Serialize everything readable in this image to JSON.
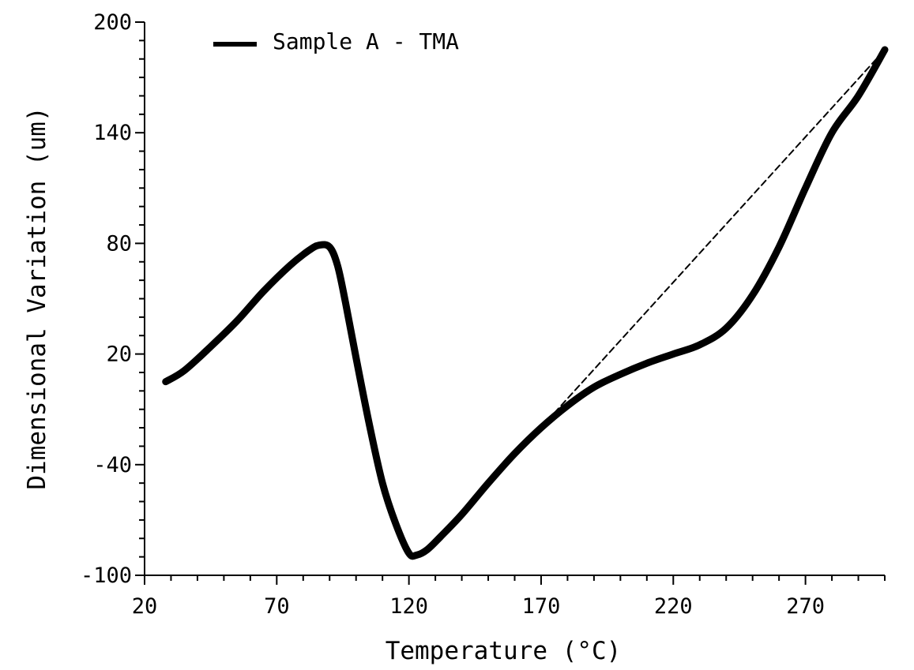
{
  "chart_data": {
    "type": "line",
    "xlabel": "Temperature (°C)",
    "ylabel": "Dimensional Variation (um)",
    "xlim": [
      20,
      300
    ],
    "ylim": [
      -100,
      200
    ],
    "xticks": [
      "20",
      "70",
      "120",
      "170",
      "220",
      "270"
    ],
    "yticks": [
      "200",
      "140",
      "80",
      "20",
      "-40",
      "-100"
    ],
    "legend_position": "top-left",
    "grid": false,
    "series": [
      {
        "name": "Sample A - TMA",
        "style": "solid",
        "color": "#000000",
        "x": [
          28,
          35,
          45,
          55,
          65,
          75,
          82,
          86,
          90,
          93,
          96,
          100,
          105,
          110,
          115,
          120,
          123,
          127,
          132,
          140,
          150,
          160,
          170,
          180,
          190,
          200,
          210,
          220,
          230,
          240,
          250,
          260,
          270,
          280,
          290,
          300
        ],
        "y": [
          5,
          11,
          24,
          38,
          54,
          68,
          76,
          79,
          78,
          68,
          48,
          18,
          -18,
          -50,
          -72,
          -88,
          -89,
          -86,
          -79,
          -67,
          -50,
          -34,
          -20,
          -8,
          2,
          9,
          15,
          20,
          25,
          34,
          52,
          78,
          110,
          140,
          160,
          185
        ]
      },
      {
        "name": "",
        "style": "dashed",
        "color": "#000000",
        "x": [
          175,
          300
        ],
        "y": [
          -12,
          185
        ]
      }
    ]
  }
}
